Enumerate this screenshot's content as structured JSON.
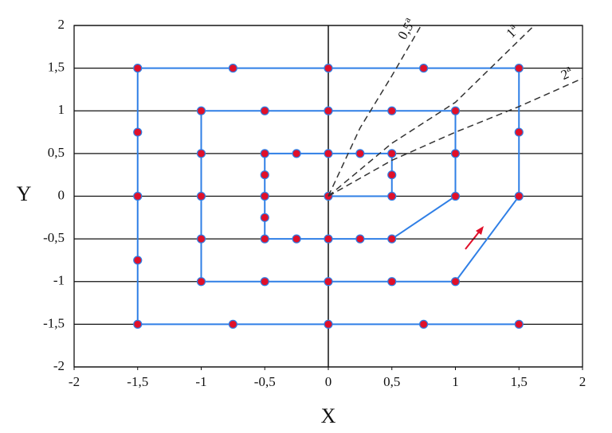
{
  "chart_data": {
    "type": "line",
    "xlabel": "X",
    "ylabel": "Y",
    "xlim": [
      -2,
      2
    ],
    "ylim": [
      -2,
      2
    ],
    "xticks": [
      -2,
      {
        "value": -1.5,
        "label": "-1,5"
      },
      -1,
      {
        "value": -0.5,
        "label": "-0,5"
      },
      0,
      {
        "value": 0.5,
        "label": "0,5"
      },
      1,
      {
        "value": 1.5,
        "label": "1,5"
      },
      2
    ],
    "yticks": [
      -2,
      {
        "value": -1.5,
        "label": "-1,5"
      },
      -1,
      {
        "value": -0.5,
        "label": "-0,5"
      },
      0,
      {
        "value": 0.5,
        "label": "0,5"
      },
      1,
      {
        "value": 1.5,
        "label": "1,5"
      },
      2
    ],
    "grid": true,
    "series": [
      {
        "color": "#2f7fe6",
        "marker_color": "#e0102a",
        "x": [
          0,
          0.5,
          0.5,
          0.5,
          0.25,
          0,
          -0.25,
          -0.5,
          -0.5,
          -0.5,
          -0.5,
          -0.5,
          -0.25,
          0,
          0.25,
          0.5,
          1,
          1,
          1,
          0.5,
          0,
          -0.5,
          -1,
          -1,
          -1,
          -1,
          -1,
          -0.5,
          0,
          0.5,
          1,
          1.5,
          1.5,
          1.5,
          0.75,
          0,
          -0.75,
          -1.5,
          -1.5,
          -1.5,
          -1.5,
          -1.5,
          -0.75,
          0,
          0.75,
          1.5
        ],
        "values": [
          0,
          0,
          0.25,
          0.5,
          0.5,
          0.5,
          0.5,
          0.5,
          0.25,
          0,
          -0.25,
          -0.5,
          -0.5,
          -0.5,
          -0.5,
          -0.5,
          0,
          0.5,
          1,
          1,
          1,
          1,
          1,
          0.5,
          0,
          -0.5,
          -1,
          -1,
          -1,
          -1,
          -1,
          0,
          0.75,
          1.5,
          1.5,
          1.5,
          1.5,
          1.5,
          0.75,
          0,
          -0.75,
          -1.5,
          -1.5,
          -1.5,
          -1.5,
          -1.5
        ]
      },
      {
        "name": "0,5",
        "superscript": "a",
        "color": "#333333",
        "dashed": true,
        "x": [
          0,
          0.25,
          0.5,
          0.73
        ],
        "values": [
          0,
          0.8,
          1.41,
          2
        ]
      },
      {
        "name": "1",
        "superscript": "a",
        "color": "#333333",
        "dashed": true,
        "x": [
          0,
          0.5,
          1,
          1.62
        ],
        "values": [
          0,
          0.62,
          1.1,
          2
        ]
      },
      {
        "name": "2",
        "superscript": "a",
        "color": "#333333",
        "dashed": true,
        "x": [
          0,
          0.5,
          1,
          1.5,
          2
        ],
        "values": [
          0,
          0.42,
          0.75,
          1.05,
          1.38
        ]
      }
    ]
  }
}
